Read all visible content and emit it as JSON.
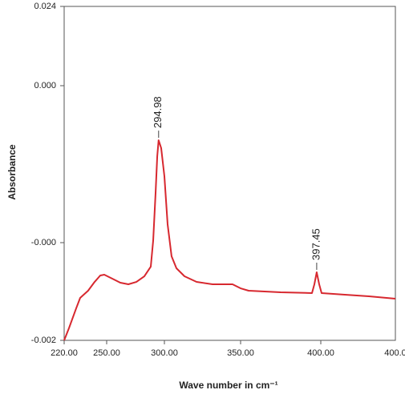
{
  "chart_data": {
    "type": "line",
    "ylabel": "Absorbance",
    "xlabel": "Wave number in cm⁻¹",
    "x": [
      220,
      223.4,
      228.5,
      231.3,
      236.9,
      241.5,
      245.5,
      248.3,
      254.9,
      261.8,
      268.8,
      275.7,
      282.6,
      288.2,
      290.3,
      292.4,
      293.8,
      294.98,
      297.2,
      300,
      302.1,
      304.7,
      307.9,
      313.2,
      321.1,
      331.6,
      344.7,
      350,
      355,
      375,
      394.5,
      396,
      397.45,
      399,
      400.5,
      415,
      430,
      446.5
    ],
    "series": [
      {
        "color": "#d7282f",
        "values": [
          -0.002,
          -0.0018,
          -0.001475,
          -0.001305,
          -0.001187,
          -0.001043,
          -0.000938,
          -0.000925,
          -0.00099,
          -0.001056,
          -0.001082,
          -0.001043,
          -0.000951,
          -0.000793,
          -0.000394,
          -0.000271,
          -0.00018,
          -0.000139,
          -0.000159,
          -0.000231,
          -0.000353,
          -0.000623,
          -0.00082,
          -0.000951,
          -0.001043,
          -0.001082,
          -0.001082,
          -0.001148,
          -0.001187,
          -0.001213,
          -0.001226,
          -0.001082,
          -0.000885,
          -0.001082,
          -0.001226,
          -0.001252,
          -0.001279,
          -0.001318
        ]
      }
    ],
    "xlim": [
      220,
      446.5
    ],
    "xticks": [
      {
        "value": 220,
        "label": "220.00"
      },
      {
        "value": 250,
        "label": "250.00"
      },
      {
        "value": 300,
        "label": "300.00"
      },
      {
        "value": 350,
        "label": "350.00"
      },
      {
        "value": 400,
        "label": "400.00"
      }
    ],
    "x_end_label": "400.0",
    "ylim": [
      -0.002,
      0.024
    ],
    "yticks": [
      {
        "value": 0.024,
        "label": "0.024"
      },
      {
        "value": 0,
        "label": "0.000"
      },
      {
        "value": -0.0004,
        "label": "-0.000"
      },
      {
        "value": -0.002,
        "label": "-0.002"
      }
    ],
    "annotations": [
      {
        "text": "294.98",
        "x": 294.98,
        "y": -0.000139
      },
      {
        "text": "397.45",
        "x": 397.45,
        "y": -0.000885
      }
    ]
  }
}
